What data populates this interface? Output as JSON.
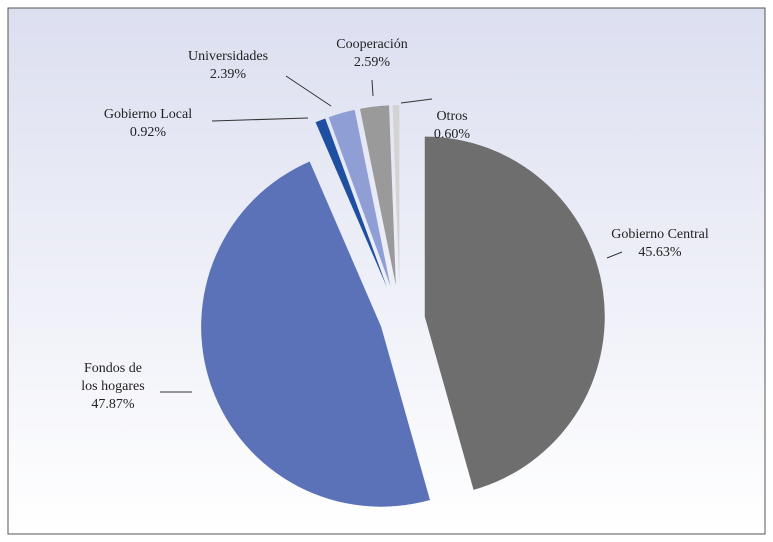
{
  "chart_data": {
    "type": "pie",
    "categories": [
      "Gobierno Central",
      "Fondos de\nlos hogares",
      "Gobierno Local",
      "Universidades",
      "Cooperación",
      "Otros"
    ],
    "values": [
      45.63,
      47.87,
      0.92,
      2.39,
      2.59,
      0.6
    ],
    "value_labels": [
      "45.63%",
      "47.87%",
      "0.92%",
      "2.39%",
      "2.59%",
      "0.60%"
    ],
    "colors": [
      "#6e6e6e",
      "#5b72b8",
      "#1f4fa0",
      "#8f9fd6",
      "#9a9a9a",
      "#d3d3d3"
    ]
  }
}
